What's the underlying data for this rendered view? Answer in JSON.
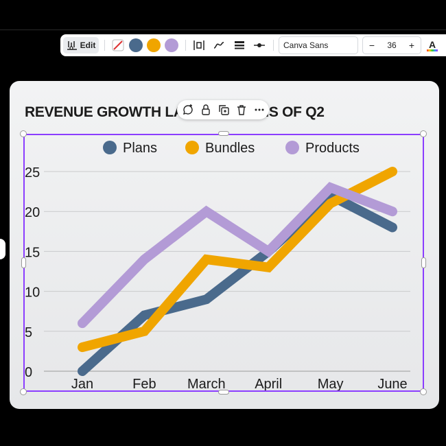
{
  "toolbar": {
    "edit_label": "Edit",
    "font_name": "Canva Sans",
    "font_size": "36",
    "minus_label": "−",
    "plus_label": "+",
    "text_color_label": "A",
    "swatch_colors": [
      "#4a6a8c",
      "#f0a500",
      "#b39bd6"
    ]
  },
  "chart_data": {
    "type": "line",
    "title": "REVENUE GROWTH LAST 6 MONTHS OF Q2",
    "categories": [
      "Jan",
      "Feb",
      "March",
      "April",
      "May",
      "June"
    ],
    "series": [
      {
        "name": "Plans",
        "color": "#4a6a8c",
        "values": [
          0,
          7,
          9,
          15,
          22,
          18
        ]
      },
      {
        "name": "Bundles",
        "color": "#f0a500",
        "values": [
          3,
          5,
          14,
          13,
          21,
          25
        ]
      },
      {
        "name": "Products",
        "color": "#b39bd6",
        "values": [
          6,
          14,
          20,
          15,
          23,
          20
        ]
      }
    ],
    "yticks": [
      0,
      5,
      10,
      15,
      20,
      25
    ],
    "ylim": [
      0,
      25
    ],
    "grid": true,
    "legend_position": "top"
  }
}
